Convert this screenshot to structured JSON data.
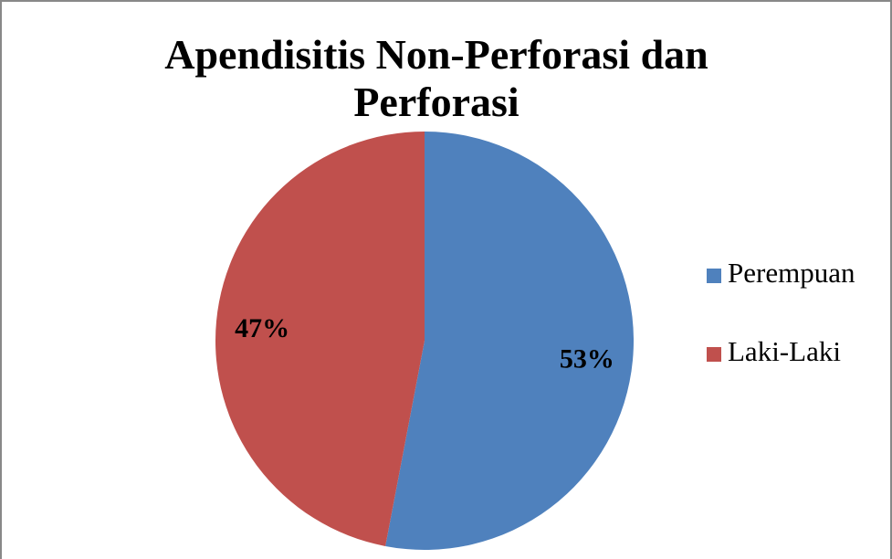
{
  "chart_data": {
    "type": "pie",
    "title": "Apendisitis Non-Perforasi dan Perforasi",
    "categories": [
      "Perempuan",
      "Laki-Laki"
    ],
    "values": [
      53,
      47
    ],
    "value_labels": [
      "53%",
      "47%"
    ],
    "colors": [
      "#4f81bd",
      "#c0504d"
    ],
    "legend": "right"
  }
}
